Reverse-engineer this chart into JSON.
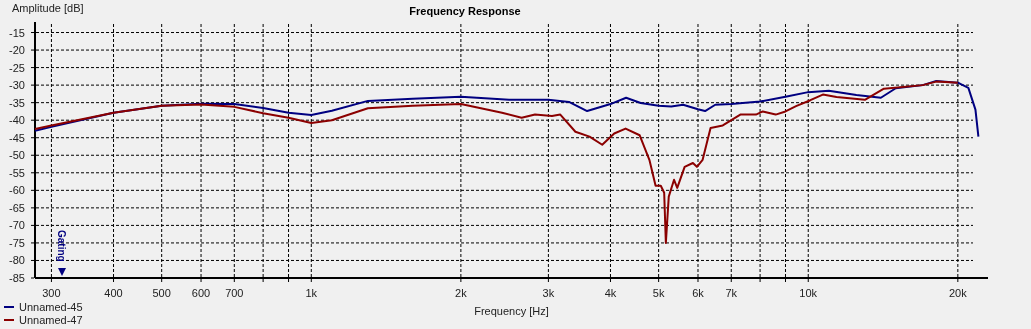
{
  "chart_data": {
    "type": "line",
    "title": "Frequency Response",
    "xlabel": "Frequency [Hz]",
    "ylabel": "Amplitude [dB]",
    "log": "x",
    "xlim": [
      278,
      23000
    ],
    "ylim": [
      -85,
      -12
    ],
    "xticks": [
      300,
      400,
      500,
      600,
      700,
      {
        "value": 800,
        "label": null
      },
      {
        "value": 900,
        "label": null
      },
      {
        "value": 1000,
        "label": "1k"
      },
      {
        "value": 2000,
        "label": "2k"
      },
      {
        "value": 3000,
        "label": "3k"
      },
      {
        "value": 4000,
        "label": "4k"
      },
      {
        "value": 5000,
        "label": "5k"
      },
      {
        "value": 6000,
        "label": "6k"
      },
      {
        "value": 7000,
        "label": "7k"
      },
      {
        "value": 8000,
        "label": null
      },
      {
        "value": 9000,
        "label": null
      },
      {
        "value": 10000,
        "label": "10k"
      },
      {
        "value": 20000,
        "label": "20k"
      }
    ],
    "yticks": [
      -15,
      -20,
      -25,
      -30,
      -35,
      -40,
      -45,
      -50,
      -55,
      -60,
      -65,
      -70,
      -75,
      -80,
      -85
    ],
    "grid": true,
    "legend": "bottom left",
    "line_style": "solid",
    "marker": "none",
    "annotations": [
      "Gating"
    ],
    "series": [
      {
        "name": "Unnamed-45",
        "color": "#000080",
        "x": [
          278,
          300,
          400,
          500,
          600,
          700,
          800,
          900,
          1000,
          1100,
          1300,
          1600,
          2000,
          2500,
          3000,
          3300,
          3590,
          4000,
          4300,
          4600,
          5000,
          5300,
          5600,
          6000,
          6200,
          6500,
          7000,
          8000,
          9000,
          10000,
          11000,
          12500,
          14000,
          15000,
          17000,
          18100,
          20000,
          21000,
          21700,
          22000
        ],
        "values": [
          -43,
          -41.9,
          -37.9,
          -35.9,
          -35.3,
          -35.4,
          -36.5,
          -37.9,
          -38.5,
          -37.3,
          -34.5,
          -33.9,
          -33.3,
          -34.2,
          -34.2,
          -34.8,
          -37.4,
          -35.4,
          -33.6,
          -35.1,
          -35.9,
          -36.1,
          -35.6,
          -36.9,
          -37.4,
          -35.6,
          -35.4,
          -34.7,
          -33.3,
          -32,
          -31.6,
          -32.8,
          -33.6,
          -30.9,
          -30,
          -28.8,
          -29.3,
          -30.8,
          -37,
          -44.7
        ]
      },
      {
        "name": "Unnamed-47",
        "color": "#8b0000",
        "x": [
          278,
          300,
          400,
          500,
          600,
          700,
          800,
          900,
          1000,
          1100,
          1300,
          1600,
          2000,
          2420,
          2650,
          2820,
          3050,
          3170,
          3400,
          3630,
          3850,
          4070,
          4290,
          4580,
          4790,
          4930,
          5050,
          5130,
          5170,
          5240,
          5370,
          5450,
          5640,
          5860,
          5970,
          6130,
          6360,
          6730,
          7300,
          7850,
          8100,
          8600,
          9000,
          9450,
          10100,
          10700,
          11400,
          13000,
          14200,
          17000,
          18100,
          20000
        ],
        "values": [
          -42.5,
          -41.5,
          -37.9,
          -35.9,
          -35.5,
          -36.2,
          -38,
          -39.3,
          -40.8,
          -40,
          -36.6,
          -35.9,
          -35.4,
          -37.9,
          -39.3,
          -38.4,
          -38.8,
          -38.4,
          -43.3,
          -44.7,
          -47,
          -43.8,
          -42.4,
          -44.3,
          -51.3,
          -58.7,
          -58.7,
          -60.7,
          -75,
          -61.8,
          -57,
          -59.3,
          -53.3,
          -52.2,
          -53.3,
          -51.3,
          -42.2,
          -41.5,
          -38.4,
          -38.4,
          -37.5,
          -38.4,
          -37.5,
          -36,
          -34.3,
          -32.7,
          -33.4,
          -34.2,
          -31,
          -30,
          -29,
          -29.3
        ]
      }
    ]
  }
}
